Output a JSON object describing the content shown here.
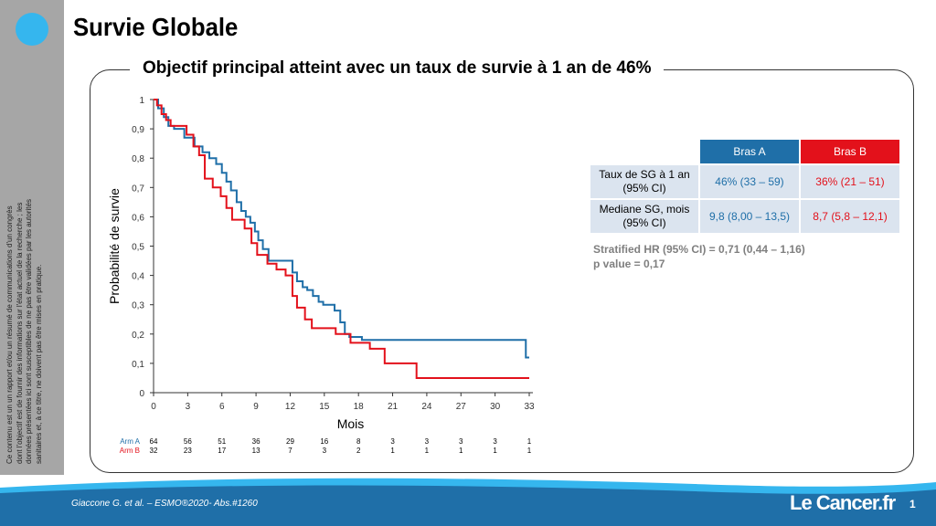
{
  "slide": {
    "title": "Survie Globale",
    "subtitle": "Objectif principal atteint avec un taux de survie à 1 an de 46%",
    "side_note": "Ce contenu est un un rapport et/ou un résumé de communications d'un congrès dont l'objectif est de fournir des informations sur l'état actuel de la recherche ; les données présentées ici sont susceptibles de ne pas être validées par les autorités sanitaires et, à ce titre, ne doivent pas être mises en pratique.",
    "citation": "Giaccone G. et al. – ESMO®2020- Abs.#1260",
    "logo": "Le Cancer.fr",
    "page_number": "1",
    "accent_color": "#35b6ee"
  },
  "table": {
    "col_a": "Bras A",
    "col_b": "Bras B",
    "rows": [
      {
        "label": "Taux de SG à 1 an (95% CI)",
        "a": "46% (33 – 59)",
        "b": "36% (21 – 51)"
      },
      {
        "label": "Mediane SG, mois (95% CI)",
        "a": "9,8 (8,00 – 13,5)",
        "b": "8,7 (5,8 – 12,1)"
      }
    ]
  },
  "stats": {
    "hr": "Stratified HR (95% CI) = 0,71 (0,44 – 1,16)",
    "pvalue": "p value = 0,17"
  },
  "chart_data": {
    "type": "line",
    "xlabel": "Mois",
    "ylabel": "Probabilité de survie",
    "xlim": [
      0,
      33
    ],
    "ylim": [
      0,
      1
    ],
    "xticks": [
      0,
      3,
      6,
      9,
      12,
      15,
      18,
      21,
      24,
      27,
      30,
      33
    ],
    "yticks": [
      "0",
      "0,1",
      "0,2",
      "0,3",
      "0,4",
      "0,5",
      "0,6",
      "0,7",
      "0,8",
      "0,9",
      "1"
    ],
    "series": [
      {
        "name": "Arm A",
        "color": "#1f6fa8",
        "x": [
          0,
          0.4,
          0.9,
          1.3,
          1.8,
          2.7,
          3.6,
          4.3,
          4.9,
          5.5,
          6.0,
          6.4,
          6.8,
          7.3,
          7.7,
          8.1,
          8.5,
          8.9,
          9.2,
          9.6,
          10.1,
          11.3,
          12.2,
          12.6,
          13.1,
          13.5,
          14.0,
          14.5,
          14.9,
          15.9,
          16.4,
          16.8,
          17.2,
          17.8,
          18.3,
          32.3,
          32.7,
          33
        ],
        "y": [
          1,
          0.97,
          0.94,
          0.91,
          0.9,
          0.87,
          0.84,
          0.82,
          0.8,
          0.78,
          0.75,
          0.72,
          0.69,
          0.65,
          0.62,
          0.6,
          0.58,
          0.55,
          0.52,
          0.49,
          0.45,
          0.45,
          0.41,
          0.38,
          0.36,
          0.35,
          0.33,
          0.31,
          0.3,
          0.28,
          0.24,
          0.2,
          0.19,
          0.19,
          0.18,
          0.18,
          0.12,
          0.12
        ]
      },
      {
        "name": "Arm B",
        "color": "#e3111b",
        "x": [
          0,
          0.3,
          0.7,
          1.1,
          1.5,
          2.9,
          3.5,
          4.0,
          4.5,
          5.2,
          5.9,
          6.4,
          6.9,
          8.0,
          8.6,
          9.1,
          10.0,
          10.8,
          11.6,
          12.2,
          12.6,
          13.3,
          13.9,
          16.0,
          17.3,
          19.0,
          20.3,
          23.1,
          33
        ],
        "y": [
          1,
          0.98,
          0.95,
          0.93,
          0.91,
          0.88,
          0.84,
          0.81,
          0.73,
          0.7,
          0.67,
          0.63,
          0.59,
          0.56,
          0.51,
          0.47,
          0.44,
          0.42,
          0.4,
          0.33,
          0.29,
          0.25,
          0.22,
          0.2,
          0.17,
          0.15,
          0.1,
          0.05,
          0.05
        ]
      }
    ],
    "risk_table": {
      "arms": [
        {
          "label": "Arm A",
          "color": "#1f6fa8",
          "counts": [
            "64",
            "56",
            "51",
            "36",
            "29",
            "16",
            "8",
            "3",
            "3",
            "3",
            "3",
            "1"
          ]
        },
        {
          "label": "Arm B",
          "color": "#e3111b",
          "counts": [
            "32",
            "23",
            "17",
            "13",
            "7",
            "3",
            "2",
            "1",
            "1",
            "1",
            "1",
            "1"
          ]
        }
      ]
    }
  }
}
